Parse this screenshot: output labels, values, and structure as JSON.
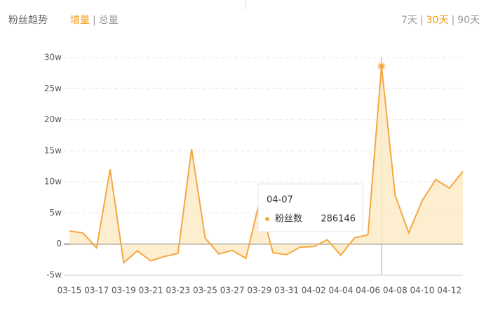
{
  "header": {
    "title": "粉丝趋势",
    "mode_tabs": [
      "增量",
      "总量"
    ],
    "active_mode": 0,
    "range_tabs": [
      "7天",
      "30天",
      "90天"
    ],
    "active_range": 1,
    "separator": "|"
  },
  "chart_data": {
    "type": "line",
    "categories": [
      "03-15",
      null,
      "03-17",
      null,
      "03-19",
      null,
      "03-21",
      null,
      "03-23",
      null,
      "03-25",
      null,
      "03-27",
      null,
      "03-29",
      null,
      "03-31",
      null,
      "04-02",
      null,
      "04-04",
      null,
      "04-06",
      null,
      "04-08",
      null,
      "04-10",
      null,
      "04-12",
      null
    ],
    "series": [
      {
        "name": "粉丝数",
        "color": "#f5a742",
        "values": [
          21000,
          18000,
          -6000,
          120000,
          -30000,
          -11000,
          -27000,
          -20000,
          -15000,
          153000,
          10000,
          -16000,
          -10000,
          -23000,
          68000,
          -14000,
          -17000,
          -5000,
          -4000,
          7000,
          -18000,
          10000,
          15000,
          286146,
          79000,
          18000,
          70000,
          104000,
          90000,
          117000
        ]
      }
    ],
    "ylim": [
      -50000,
      300000
    ],
    "yticks": [
      {
        "value": -50000,
        "label": "-5w"
      },
      0,
      {
        "value": 50000,
        "label": "5w"
      },
      {
        "value": 100000,
        "label": "10w"
      },
      {
        "value": 150000,
        "label": "15w"
      },
      {
        "value": 200000,
        "label": "20w"
      },
      {
        "value": 250000,
        "label": "25w"
      },
      {
        "value": 300000,
        "label": "30w"
      }
    ],
    "grid": true,
    "tooltip": {
      "label": "04-07",
      "index": 23
    }
  }
}
